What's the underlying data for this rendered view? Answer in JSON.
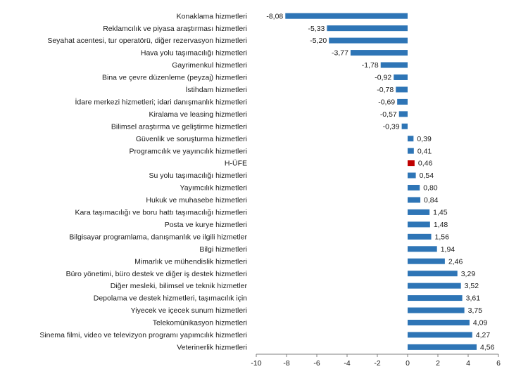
{
  "chart_data": {
    "type": "bar",
    "orientation": "horizontal",
    "categories": [
      "Konaklama hizmetleri",
      "Reklamcılık ve piyasa araştırması hizmetleri",
      "Seyahat acentesi, tur operatörü, diğer rezervasyon hizmetleri",
      "Hava yolu taşımacılığı hizmetleri",
      "Gayrimenkul hizmetleri",
      "Bina ve çevre düzenleme (peyzaj) hizmetleri",
      "İstihdam hizmetleri",
      "İdare merkezi hizmetleri; idari danışmanlık hizmetleri",
      "Kiralama ve leasing hizmetleri",
      "Bilimsel araştırma ve geliştirme hizmetleri",
      "Güvenlik ve soruşturma hizmetleri",
      "Programcılık ve yayıncılık hizmetleri",
      "H-ÜFE",
      "Su yolu taşımacılığı hizmetleri",
      "Yayımcılık hizmetleri",
      "Hukuk ve muhasebe hizmetleri",
      "Kara taşımacılığı ve boru hattı taşımacılığı hizmetleri",
      "Posta ve kurye hizmetleri",
      "Bilgisayar programlama, danışmanlık ve ilgili hizmetler",
      "Bilgi hizmetleri",
      "Mimarlık ve mühendislik hizmetleri",
      "Büro yönetimi, büro destek ve diğer iş destek hizmetleri",
      "Diğer mesleki, bilimsel ve teknik hizmetler",
      "Depolama ve destek hizmetleri, taşımacılık için",
      "Yiyecek ve içecek sunum hizmetleri",
      "Telekomünikasyon hizmetleri",
      "Sinema filmi, video ve televizyon programı yapımcılık hizmetleri",
      "Veterinerlik hizmetleri"
    ],
    "values": [
      -8.08,
      -5.33,
      -5.2,
      -3.77,
      -1.78,
      -0.92,
      -0.78,
      -0.69,
      -0.57,
      -0.39,
      0.39,
      0.41,
      0.46,
      0.54,
      0.8,
      0.84,
      1.45,
      1.48,
      1.56,
      1.94,
      2.46,
      3.29,
      3.52,
      3.61,
      3.75,
      4.09,
      4.27,
      4.56
    ],
    "value_labels": [
      "-8,08",
      "-5,33",
      "-5,20",
      "-3,77",
      "-1,78",
      "-0,92",
      "-0,78",
      "-0,69",
      "-0,57",
      "-0,39",
      "0,39",
      "0,41",
      "0,46",
      "0,54",
      "0,80",
      "0,84",
      "1,45",
      "1,48",
      "1,56",
      "1,94",
      "2,46",
      "3,29",
      "3,52",
      "3,61",
      "3,75",
      "4,09",
      "4,27",
      "4,56"
    ],
    "highlight_index": 12,
    "xlim": [
      -10,
      6
    ],
    "xticks": [
      -10,
      -8,
      -6,
      -4,
      -2,
      0,
      2,
      4,
      6
    ],
    "xtick_labels": [
      "-10",
      "-8",
      "-6",
      "-4",
      "-2",
      "0",
      "2",
      "4",
      "6"
    ],
    "title": "",
    "xlabel": "",
    "ylabel": "",
    "grid": false,
    "colors": {
      "bar": "#2e75b6",
      "highlight": "#c00000",
      "axis": "#7f7f7f"
    }
  }
}
